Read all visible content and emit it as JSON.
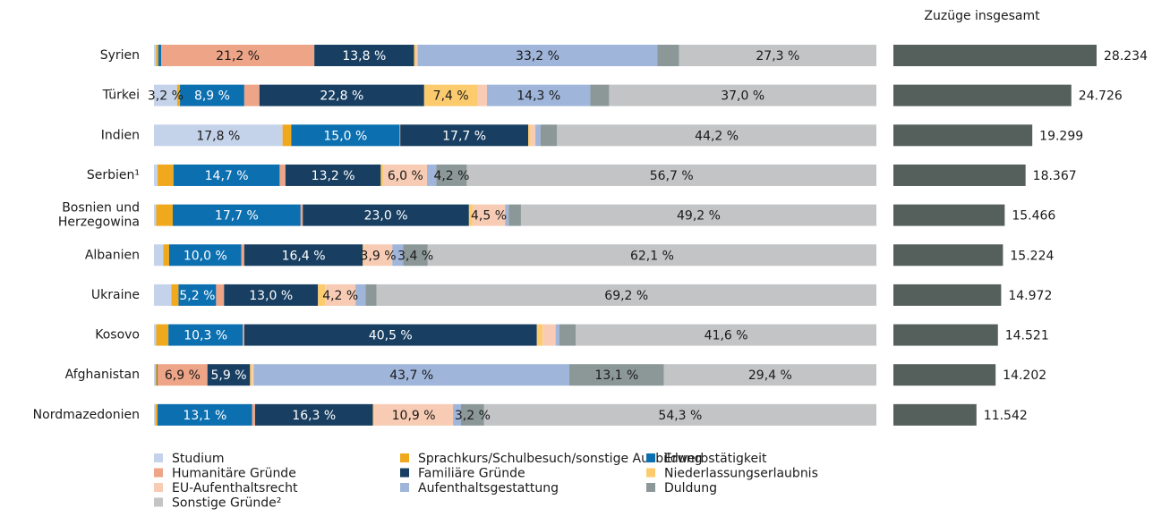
{
  "chart_data": [
    {
      "type": "bar",
      "orientation": "horizontal",
      "stacked": true,
      "categories": [
        "Syrien",
        "Türkei",
        "Indien",
        "Serbien¹",
        "Bosnien und Herzegowina",
        "Albanien",
        "Ukraine",
        "Kosovo",
        "Afghanistan",
        "Nordmazedonien"
      ],
      "legend": "bottom",
      "series": [
        {
          "name": "Studium",
          "color": "#c5d3ea",
          "values": [
            0.3,
            3.2,
            17.8,
            0.5,
            0.3,
            1.3,
            2.4,
            0.3,
            0.2,
            0.2
          ],
          "value_labels": [
            null,
            "3,2 %",
            "17,8 %",
            null,
            null,
            null,
            null,
            null,
            null,
            null
          ]
        },
        {
          "name": "Sprachkurs/Schulbesuch/sonstige Ausbildung",
          "color": "#f0a81c",
          "values": [
            0.3,
            0.4,
            1.2,
            2.2,
            2.3,
            0.8,
            1.0,
            1.7,
            0.2,
            0.3
          ],
          "value_labels": [
            null,
            null,
            null,
            null,
            null,
            null,
            null,
            null,
            null,
            null
          ]
        },
        {
          "name": "Erwerbstätigkeit",
          "color": "#0b6fb0",
          "values": [
            0.4,
            8.9,
            15.0,
            14.7,
            17.7,
            10.0,
            5.2,
            10.3,
            0.1,
            13.1
          ],
          "value_labels": [
            null,
            "8,9 %",
            "15,0 %",
            "14,7 %",
            "17,7 %",
            "10,0 %",
            "5,2 %",
            "10,3 %",
            null,
            "13,1 %"
          ]
        },
        {
          "name": "Humanitäre Gründe",
          "color": "#eda487",
          "values": [
            21.2,
            2.1,
            0.1,
            0.8,
            0.3,
            0.4,
            1.1,
            0.2,
            6.9,
            0.4
          ],
          "value_labels": [
            "21,2 %",
            null,
            null,
            null,
            null,
            null,
            null,
            null,
            "6,9 %",
            null
          ]
        },
        {
          "name": "Familiäre Gründe",
          "color": "#183f62",
          "values": [
            13.8,
            22.8,
            17.7,
            13.2,
            23.0,
            16.4,
            13.0,
            40.5,
            5.9,
            16.3
          ],
          "value_labels": [
            "13,8 %",
            "22,8 %",
            "17,7 %",
            "13,2 %",
            "23,0 %",
            "16,4 %",
            "13,0 %",
            "40,5 %",
            "5,9 %",
            "16,3 %"
          ]
        },
        {
          "name": "Niederlassungserlaubnis",
          "color": "#fccb6e",
          "values": [
            0.3,
            7.4,
            0.3,
            0.4,
            0.5,
            0.2,
            1.0,
            0.8,
            0.3,
            0.2
          ],
          "value_labels": [
            null,
            "7,4 %",
            null,
            null,
            null,
            null,
            null,
            null,
            null,
            null
          ]
        },
        {
          "name": "EU-Aufenthaltsrecht",
          "color": "#f8ccb4",
          "values": [
            0.2,
            1.3,
            0.7,
            6.0,
            4.5,
            3.9,
            4.2,
            1.8,
            0.2,
            10.9
          ],
          "value_labels": [
            null,
            null,
            null,
            "6,0 %",
            "4,5 %",
            "3,9 %",
            "4,2 %",
            null,
            null,
            "10,9 %"
          ]
        },
        {
          "name": "Aufenthaltsgestattung",
          "color": "#9fb5d9",
          "values": [
            33.2,
            14.3,
            0.7,
            1.3,
            0.5,
            1.5,
            1.4,
            0.5,
            43.7,
            1.1
          ],
          "value_labels": [
            "33,2 %",
            "14,3 %",
            null,
            null,
            null,
            null,
            null,
            null,
            "43,7 %",
            null
          ]
        },
        {
          "name": "Duldung",
          "color": "#8c9898",
          "values": [
            3.0,
            2.6,
            2.3,
            4.2,
            1.7,
            3.4,
            1.5,
            2.3,
            13.1,
            3.2
          ],
          "value_labels": [
            null,
            null,
            null,
            "4,2 %",
            null,
            "3,4 %",
            null,
            null,
            "13,1 %",
            "3,2 %"
          ]
        },
        {
          "name": "Sonstige Gründe²",
          "color": "#c2c4c5",
          "values": [
            27.3,
            37.0,
            44.2,
            56.7,
            49.2,
            62.1,
            69.2,
            41.6,
            29.4,
            54.3
          ],
          "value_labels": [
            "27,3 %",
            "37,0 %",
            "44,2 %",
            "56,7 %",
            "49,2 %",
            "62,1 %",
            "69,2 %",
            "41,6 %",
            "29,4 %",
            "54,3 %"
          ]
        }
      ]
    },
    {
      "type": "bar",
      "orientation": "horizontal",
      "title": "Zuzüge insgesamt",
      "color": "#555f5c",
      "values": [
        28234,
        24726,
        19299,
        18367,
        15466,
        15224,
        14972,
        14521,
        14202,
        11542
      ],
      "value_labels": [
        "28.234",
        "24.726",
        "19.299",
        "18.367",
        "15.466",
        "15.224",
        "14.972",
        "14.521",
        "14.202",
        "11.542"
      ]
    }
  ]
}
